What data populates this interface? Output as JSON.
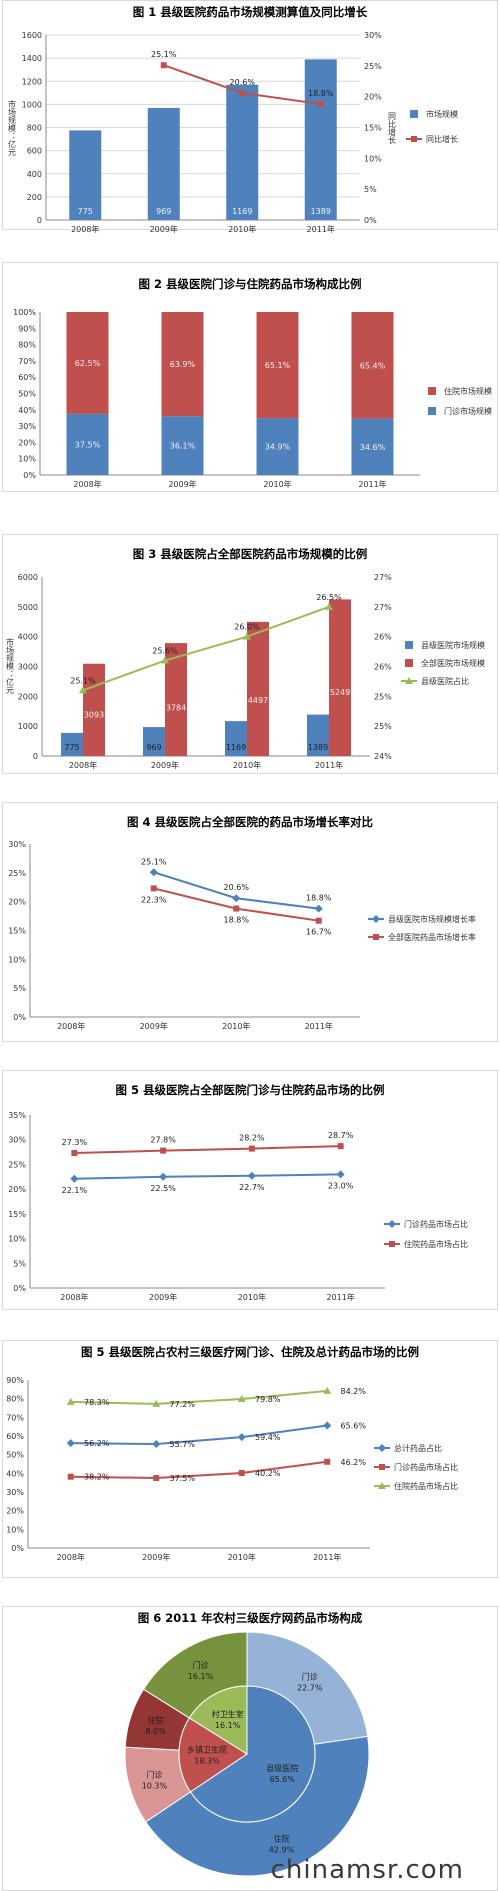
{
  "watermark": "chinamsr.com",
  "chart_data": [
    {
      "id": "f1",
      "type": "bar+line",
      "title": "图 1   县级医院药品市场规模测算值及同比增长",
      "categories": [
        "2008年",
        "2009年",
        "2010年",
        "2011年"
      ],
      "ylabel": "市场规模：亿元",
      "y2label": "同比增长",
      "ylim": [
        0,
        1600
      ],
      "yticks": [
        "0",
        "200",
        "400",
        "600",
        "800",
        "1000",
        "1200",
        "1400",
        "1600"
      ],
      "y2lim": [
        0,
        30
      ],
      "y2ticks": [
        "0%",
        "5%",
        "10%",
        "15%",
        "20%",
        "25%",
        "30%"
      ],
      "bars": {
        "name": "市场规模",
        "values": [
          775,
          969,
          1169,
          1389
        ],
        "labels": [
          "775",
          "969",
          "1169",
          "1389"
        ],
        "color": "#4f81bd"
      },
      "line": {
        "name": "同比增长",
        "values": [
          null,
          25.1,
          20.6,
          18.8
        ],
        "labels": [
          "",
          "25.1%",
          "20.6%",
          "18.8%"
        ],
        "color": "#c0504d"
      },
      "legend": [
        "市场规模",
        "同比增长"
      ],
      "legend_position": "right"
    },
    {
      "id": "f2",
      "type": "stacked-bar-100",
      "title": "图 2   县级医院门诊与住院药品市场构成比例",
      "categories": [
        "2008年",
        "2009年",
        "2010年",
        "2011年"
      ],
      "ylim": [
        0,
        100
      ],
      "yticks": [
        "0%",
        "10%",
        "20%",
        "30%",
        "40%",
        "50%",
        "60%",
        "70%",
        "80%",
        "90%",
        "100%"
      ],
      "series": [
        {
          "name": "门诊市场规模",
          "values": [
            37.5,
            36.1,
            34.9,
            34.6
          ],
          "labels": [
            "37.5%",
            "36.1%",
            "34.9%",
            "34.6%"
          ],
          "color": "#4f81bd"
        },
        {
          "name": "住院市场规模",
          "values": [
            62.5,
            63.9,
            65.1,
            65.4
          ],
          "labels": [
            "62.5%",
            "63.9%",
            "65.1%",
            "65.4%"
          ],
          "color": "#c0504d"
        }
      ],
      "legend": [
        "住院市场规模",
        "门诊市场规模"
      ],
      "legend_position": "right"
    },
    {
      "id": "f3",
      "type": "bar+line",
      "title": "图 3   县级医院占全部医院药品市场规模的比例",
      "categories": [
        "2008年",
        "2009年",
        "2010年",
        "2011年"
      ],
      "ylabel": "市场规模：亿元",
      "ylim": [
        0,
        6000
      ],
      "yticks": [
        "0",
        "1000",
        "2000",
        "3000",
        "4000",
        "5000",
        "6000"
      ],
      "y2lim": [
        24,
        27
      ],
      "y2ticks": [
        "24%",
        "25%",
        "25%",
        "26%",
        "26%",
        "27%",
        "27%"
      ],
      "series": [
        {
          "name": "县级医院市场规模",
          "values": [
            775,
            969,
            1169,
            1389
          ],
          "labels": [
            "775",
            "969",
            "1169",
            "1389"
          ],
          "color": "#4f81bd"
        },
        {
          "name": "全部医院市场规模",
          "values": [
            3093,
            3784,
            4497,
            5249
          ],
          "labels": [
            "3093",
            "3784",
            "4497",
            "5249"
          ],
          "color": "#c0504d"
        }
      ],
      "line": {
        "name": "县级医院占比",
        "values": [
          25.1,
          25.6,
          26.0,
          26.5
        ],
        "labels": [
          "25.1%",
          "25.6%",
          "26.0%",
          "26.5%"
        ],
        "color": "#9bbb59"
      },
      "legend": [
        "县级医院市场规模",
        "全部医院市场规模",
        "县级医院占比"
      ],
      "legend_position": "right"
    },
    {
      "id": "f4",
      "type": "line",
      "title": "图 4   县级医院占全部医院的药品市场增长率对比",
      "categories": [
        "2008年",
        "2009年",
        "2010年",
        "2011年"
      ],
      "ylim": [
        0,
        30
      ],
      "yticks": [
        "0%",
        "5%",
        "10%",
        "15%",
        "20%",
        "25%",
        "30%"
      ],
      "series": [
        {
          "name": "县级医院市场规模增长率",
          "values": [
            null,
            25.1,
            20.6,
            18.8
          ],
          "labels": [
            "",
            "25.1%",
            "20.6%",
            "18.8%"
          ],
          "color": "#4f81bd",
          "marker": "diamond"
        },
        {
          "name": "全部医院药品市场增长率",
          "values": [
            null,
            22.3,
            18.8,
            16.7
          ],
          "labels": [
            "",
            "22.3%",
            "18.8%",
            "16.7%"
          ],
          "color": "#c0504d",
          "marker": "square"
        }
      ],
      "legend": [
        "县级医院市场规模增长率",
        "全部医院药品市场增长率"
      ],
      "legend_position": "right"
    },
    {
      "id": "f5",
      "type": "line",
      "title": "图 5   县级医院占全部医院门诊与住院药品市场的比例",
      "categories": [
        "2008年",
        "2009年",
        "2010年",
        "2011年"
      ],
      "ylim": [
        0,
        35
      ],
      "yticks": [
        "0%",
        "5%",
        "10%",
        "15%",
        "20%",
        "25%",
        "30%",
        "35%"
      ],
      "series": [
        {
          "name": "门诊药品市场占比",
          "values": [
            22.1,
            22.5,
            22.7,
            23.0
          ],
          "labels": [
            "22.1%",
            "22.5%",
            "22.7%",
            "23.0%"
          ],
          "color": "#4f81bd",
          "marker": "diamond"
        },
        {
          "name": "住院药品市场占比",
          "values": [
            27.3,
            27.8,
            28.2,
            28.7
          ],
          "labels": [
            "27.3%",
            "27.8%",
            "28.2%",
            "28.7%"
          ],
          "color": "#c0504d",
          "marker": "square"
        }
      ],
      "legend": [
        "门诊药品市场占比",
        "住院药品市场占比"
      ],
      "legend_position": "right"
    },
    {
      "id": "f6",
      "type": "line",
      "title": "图 5   县级医院占农村三级医疗网门诊、住院及总计药品市场的比例",
      "categories": [
        "2008年",
        "2009年",
        "2010年",
        "2011年"
      ],
      "ylim": [
        0,
        90
      ],
      "yticks": [
        "0%",
        "10%",
        "20%",
        "30%",
        "40%",
        "50%",
        "60%",
        "70%",
        "80%",
        "90%"
      ],
      "series": [
        {
          "name": "总计药品占比",
          "values": [
            56.2,
            55.7,
            59.4,
            65.6
          ],
          "labels": [
            "56.2%",
            "55.7%",
            "59.4%",
            "65.6%"
          ],
          "color": "#4f81bd",
          "marker": "diamond"
        },
        {
          "name": "门诊药品市场占比",
          "values": [
            38.2,
            37.5,
            40.2,
            46.2
          ],
          "labels": [
            "38.2%",
            "37.5%",
            "40.2%",
            "46.2%"
          ],
          "color": "#c0504d",
          "marker": "square"
        },
        {
          "name": "住院药品市场占比",
          "values": [
            78.3,
            77.2,
            79.8,
            84.2
          ],
          "labels": [
            "78.3%",
            "77.2%",
            "79.8%",
            "84.2%"
          ],
          "color": "#9bbb59",
          "marker": "triangle"
        }
      ],
      "legend": [
        "总计药品占比",
        "门诊药品市场占比",
        "住院药品市场占比"
      ],
      "legend_position": "right"
    },
    {
      "id": "f7",
      "type": "pie",
      "title": "图 6   2011 年农村三级医疗网药品市场构成",
      "inner": [
        {
          "name": "县级医院",
          "value": 65.6,
          "label": "65.6%",
          "color": "#4f81bd"
        },
        {
          "name": "乡镇卫生院",
          "value": 18.3,
          "label": "18.3%",
          "color": "#c0504d"
        },
        {
          "name": "村卫生室",
          "value": 16.1,
          "label": "16.1%",
          "color": "#9bbb59"
        }
      ],
      "outer": [
        {
          "name": "门诊",
          "value": 22.7,
          "label": "22.7%",
          "color": "#95b3d7"
        },
        {
          "name": "住院",
          "value": 42.9,
          "label": "42.9%",
          "color": "#4f81bd"
        },
        {
          "name": "门诊",
          "value": 10.3,
          "label": "10.3%",
          "color": "#d99694"
        },
        {
          "name": "住院",
          "value": 8.0,
          "label": "8.0%",
          "color": "#943634"
        },
        {
          "name": "门诊",
          "value": 16.1,
          "label": "16.1%",
          "color": "#76923c"
        }
      ]
    }
  ]
}
